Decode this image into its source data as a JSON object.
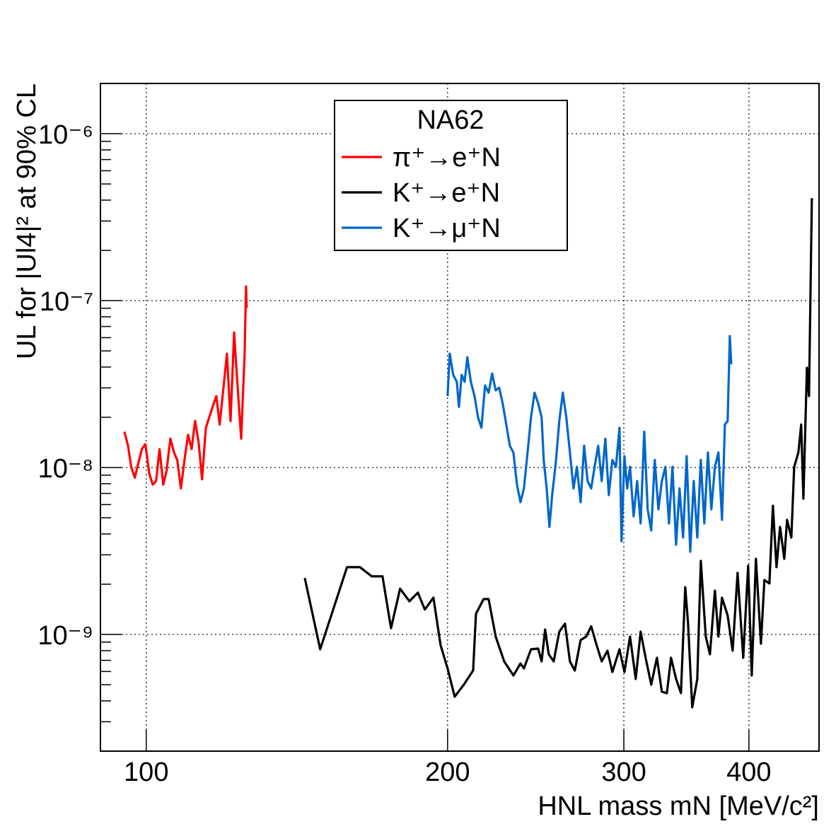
{
  "chart_data": {
    "type": "line",
    "xlabel": "HNL mass mN [MeV/c²]",
    "ylabel": "UL for |Ul4|² at 90% CL",
    "legend_title": "NA62",
    "legend": "upper center",
    "xlog": true,
    "ylog": true,
    "grid": true,
    "xlim": [
      90,
      470
    ],
    "ylim": [
      2e-10,
      2e-06
    ],
    "xticks": [
      100,
      200,
      300,
      400
    ],
    "yticks": [
      {
        "value": 1e-09,
        "label": "10⁻⁹"
      },
      {
        "value": 1e-08,
        "label": "10⁻⁸"
      },
      {
        "value": 1e-07,
        "label": "10⁻⁷"
      },
      {
        "value": 1e-06,
        "label": "10⁻⁶"
      }
    ],
    "yminorticks": [
      3e-10,
      4e-10,
      5e-10,
      6e-10,
      7e-10,
      8e-10,
      9e-10,
      2e-09,
      3e-09,
      4e-09,
      5e-09,
      6e-09,
      7e-09,
      8e-09,
      9e-09,
      2e-08,
      3e-08,
      4e-08,
      5e-08,
      6e-08,
      7e-08,
      8e-08,
      9e-08,
      2e-07,
      3e-07,
      4e-07,
      5e-07,
      6e-07,
      7e-07,
      8e-07,
      9e-07
    ],
    "series": [
      {
        "name": "π⁺→e⁺N",
        "color": "#ff0000",
        "x": [
          95.1,
          95.9,
          96.6,
          97.4,
          98.2,
          99.0,
          99.8,
          100.7,
          101.5,
          102.3,
          103.1,
          104.0,
          104.8,
          105.7,
          106.6,
          107.4,
          108.3,
          109.2,
          110.1,
          111.0,
          111.9,
          112.8,
          113.7,
          114.7,
          115.6,
          116.5,
          117.5,
          118.4,
          119.4,
          120.4,
          121.4,
          122.4,
          123.3,
          124.4,
          125.4,
          125.8,
          126.0
        ],
        "values": [
          1.64e-08,
          1.35e-08,
          1.01e-08,
          8.7e-09,
          1.06e-08,
          1.29e-08,
          1.38e-08,
          9.2e-09,
          7.9e-09,
          8.3e-09,
          1.29e-08,
          7.9e-09,
          9.6e-09,
          1.49e-08,
          1.23e-08,
          1.11e-08,
          7.5e-09,
          1.11e-08,
          1.57e-08,
          1.29e-08,
          1.9e-08,
          1.42e-08,
          8.5e-09,
          1.73e-08,
          2e-08,
          2.31e-08,
          2.68e-08,
          1.81e-08,
          2.95e-08,
          4.81e-08,
          1.9e-08,
          6.44e-08,
          3.26e-08,
          1.49e-08,
          4.81e-08,
          1.216e-07,
          9.07e-08
        ]
      },
      {
        "name": "K⁺→e⁺N",
        "color": "#000000",
        "x": [
          144.0,
          149.2,
          158.7,
          163.5,
          168.0,
          172.2,
          175.6,
          179.3,
          183.2,
          186.8,
          189.8,
          193.6,
          196.8,
          200.0,
          203.3,
          207.6,
          212.1,
          213.5,
          217.3,
          219.8,
          223.4,
          227.8,
          232.7,
          236.5,
          238.4,
          242.3,
          246.3,
          248.3,
          250.3,
          252.4,
          255.3,
          258.6,
          262.0,
          265.0,
          268.0,
          271.6,
          275.1,
          278.3,
          281.5,
          285.1,
          288.9,
          292.2,
          297.0,
          300.4,
          304.3,
          308.3,
          311.8,
          315.4,
          319.5,
          323.7,
          327.4,
          331.2,
          334.4,
          338.3,
          342.1,
          345.5,
          347.7,
          351.1,
          355.2,
          358.1,
          362.2,
          365.7,
          369.9,
          372.9,
          376.0,
          380.9,
          385.3,
          389.7,
          394.8,
          399.3,
          402.6,
          406.5,
          411.2,
          414.5,
          419.3,
          422.7,
          426.2,
          429.7,
          433.9,
          436.7,
          441.0,
          443.9,
          448.2,
          451.1,
          453.4,
          457.1,
          459.3,
          462.3
        ],
        "values": [
          2.18e-09,
          8.15e-10,
          2.53e-09,
          2.53e-09,
          2.23e-09,
          2.23e-09,
          1.09e-09,
          1.88e-09,
          1.58e-09,
          1.78e-09,
          1.41e-09,
          1.66e-09,
          8.64e-10,
          6.26e-10,
          4.24e-10,
          5e-10,
          6.08e-10,
          1.33e-09,
          1.63e-09,
          1.63e-09,
          9.71e-10,
          6.9e-10,
          5.68e-10,
          6.7e-10,
          6.26e-10,
          8.15e-10,
          8.23e-10,
          6.9e-10,
          1.07e-09,
          7.61e-10,
          6.9e-10,
          1.04e-09,
          1.16e-09,
          6.9e-10,
          6.08e-10,
          9.25e-10,
          9.71e-10,
          1.12e-09,
          8.81e-10,
          6.9e-10,
          7.99e-10,
          5.96e-10,
          8.15e-10,
          5.96e-10,
          9.71e-10,
          5.41e-10,
          1.04e-09,
          7.25e-10,
          5e-10,
          7.25e-10,
          4.54e-10,
          4.45e-10,
          7.25e-10,
          5.41e-10,
          4.45e-10,
          1.92e-09,
          1.18e-09,
          3.66e-10,
          5.41e-10,
          2.76e-09,
          9.71e-10,
          7.61e-10,
          1.83e-09,
          9.71e-10,
          1.66e-09,
          1.3e-09,
          7.99e-10,
          2.34e-09,
          7.25e-10,
          2.58e-09,
          5.68e-10,
          2.84e-09,
          8.81e-10,
          2.12e-09,
          2.02e-09,
          5.9e-09,
          2.53e-09,
          4.41e-09,
          2.84e-09,
          4.86e-09,
          3.81e-09,
          1.01e-08,
          1.23e-08,
          1.81e-08,
          6.51e-09,
          3.96e-08,
          2.68e-08,
          4.11e-07
        ]
      },
      {
        "name": "K⁺→μ⁺N",
        "color": "#0066cc",
        "x": [
          200.0,
          201.0,
          202.6,
          204.3,
          205.3,
          206.6,
          208.0,
          209.3,
          211.0,
          212.8,
          214.5,
          216.2,
          218.0,
          219.8,
          221.6,
          223.4,
          225.2,
          227.0,
          228.9,
          230.8,
          232.7,
          234.6,
          236.5,
          238.4,
          240.4,
          242.3,
          244.3,
          246.3,
          248.3,
          249.5,
          251.2,
          252.8,
          254.4,
          256.5,
          258.6,
          260.7,
          262.8,
          265.0,
          267.2,
          269.3,
          271.6,
          273.8,
          276.0,
          278.3,
          280.5,
          282.8,
          285.1,
          287.5,
          289.8,
          292.2,
          294.6,
          297.0,
          298.4,
          300.4,
          302.3,
          304.3,
          306.8,
          309.3,
          311.8,
          314.4,
          316.9,
          319.5,
          322.1,
          324.8,
          327.4,
          330.1,
          332.8,
          335.5,
          338.3,
          341.0,
          343.8,
          346.6,
          349.5,
          352.3,
          355.2,
          358.1,
          361.0,
          364.0,
          366.9,
          369.9,
          372.9,
          376.0,
          378.5,
          380.9,
          382.8,
          384.1
        ],
        "values": [
          2.68e-08,
          4.81e-08,
          3.59e-08,
          3.26e-08,
          2.31e-08,
          3.59e-08,
          3.26e-08,
          4.58e-08,
          3.26e-08,
          2.68e-08,
          2e-08,
          1.73e-08,
          3.1e-08,
          2.81e-08,
          3.66e-08,
          2.9e-08,
          3.01e-08,
          2.43e-08,
          1.81e-08,
          1.35e-08,
          1.23e-08,
          7.9e-09,
          6.2e-09,
          7.5e-09,
          1.23e-08,
          2e-08,
          2.81e-08,
          2.43e-08,
          2e-08,
          1.11e-08,
          7.5e-09,
          4.41e-09,
          6.84e-09,
          1.06e-08,
          1.9e-08,
          2.81e-08,
          2e-08,
          1.23e-08,
          7.5e-09,
          1.01e-08,
          6.2e-09,
          1.35e-08,
          8.3e-09,
          7.5e-09,
          1.01e-08,
          1.35e-08,
          8.3e-09,
          1.49e-08,
          6.84e-09,
          1.11e-08,
          1.01e-08,
          1.73e-08,
          3.62e-09,
          1.17e-08,
          7.5e-09,
          1.01e-08,
          5.1e-09,
          8.3e-09,
          4.63e-09,
          1.64e-08,
          5.62e-09,
          4.2e-09,
          1.11e-08,
          5.62e-09,
          8.3e-09,
          1.01e-08,
          4.63e-09,
          1.01e-08,
          3.45e-09,
          7.5e-09,
          3.81e-09,
          1.17e-08,
          3.13e-09,
          8.3e-09,
          3.81e-09,
          1.11e-08,
          4.63e-09,
          1.23e-08,
          5.62e-09,
          1.01e-08,
          1.23e-08,
          4.86e-09,
          1.81e-08,
          1.9e-08,
          6.14e-08,
          4.16e-08
        ]
      }
    ]
  }
}
